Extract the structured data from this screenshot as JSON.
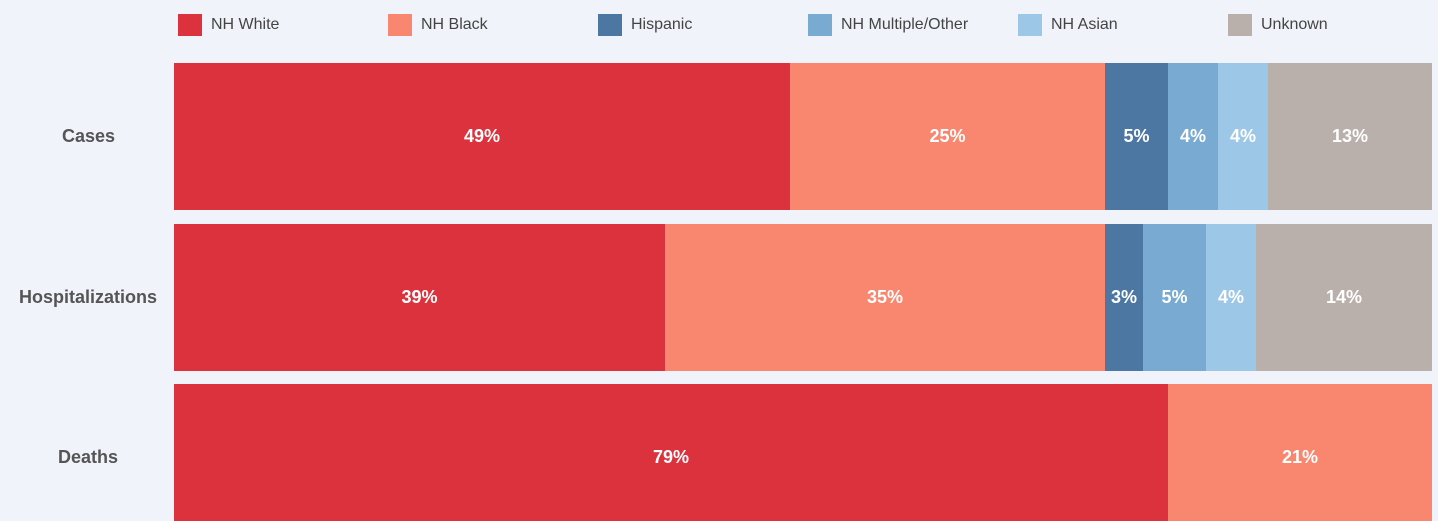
{
  "colors": {
    "NH White": "#dc323e",
    "NH Black": "#f9876f",
    "Hispanic": "#4d77a3",
    "NH Multiple/Other": "#79aad1",
    "NH Asian": "#9dc7e6",
    "Unknown": "#bab0ab"
  },
  "chart_data": {
    "type": "bar",
    "orientation": "horizontal",
    "stacked": true,
    "normalized": true,
    "categories": [
      "Cases",
      "Hospitalizations",
      "Deaths"
    ],
    "series": [
      {
        "name": "NH White",
        "values": [
          49,
          39,
          79
        ],
        "labels": [
          "49%",
          "39%",
          "79%"
        ]
      },
      {
        "name": "NH Black",
        "values": [
          25,
          35,
          21
        ],
        "labels": [
          "25%",
          "35%",
          "21%"
        ]
      },
      {
        "name": "Hispanic",
        "values": [
          5,
          3,
          0
        ],
        "labels": [
          "5%",
          "3%",
          ""
        ]
      },
      {
        "name": "NH Multiple/Other",
        "values": [
          4,
          5,
          0
        ],
        "labels": [
          "4%",
          "5%",
          ""
        ]
      },
      {
        "name": "NH Asian",
        "values": [
          4,
          4,
          0
        ],
        "labels": [
          "4%",
          "4%",
          ""
        ]
      },
      {
        "name": "Unknown",
        "values": [
          13,
          14,
          0
        ],
        "labels": [
          "13%",
          "14%",
          ""
        ]
      }
    ],
    "legend_position": "top",
    "grid": false
  }
}
